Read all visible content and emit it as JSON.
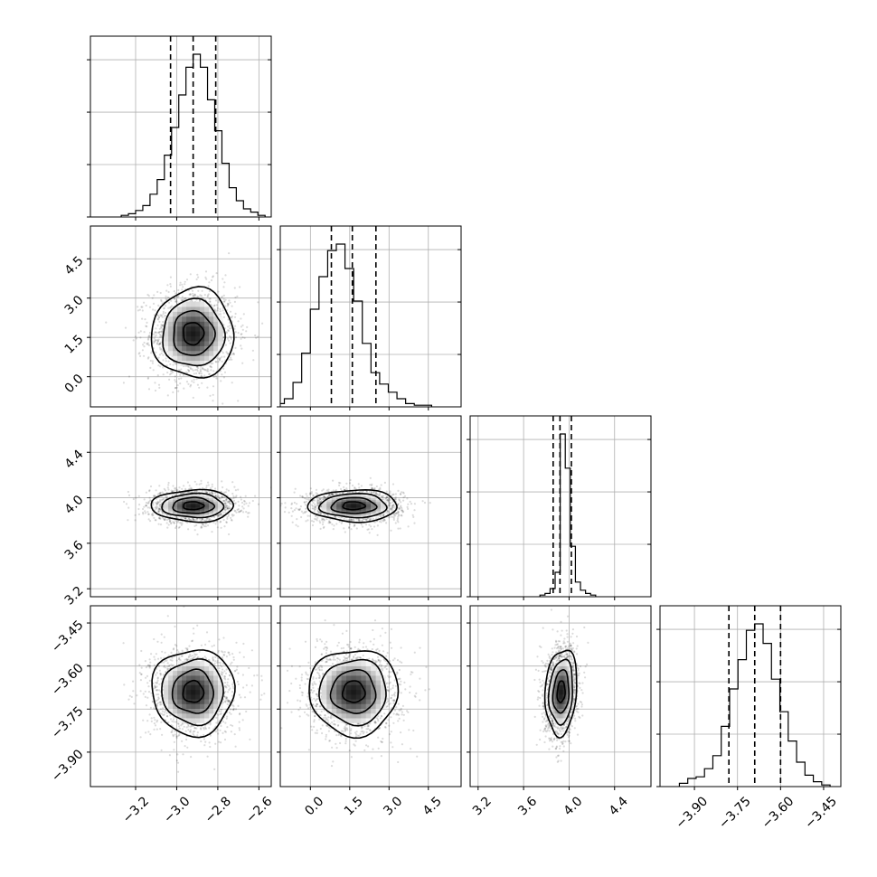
{
  "chart_data": {
    "type": "corner",
    "n_params": 4,
    "parameters": [
      {
        "mean": -2.92,
        "std": 0.1,
        "quantiles": [
          -3.03,
          -2.92,
          -2.81
        ],
        "range": [
          -3.42,
          -2.54
        ],
        "ticks": [
          -3.2,
          -3.0,
          -2.8,
          -2.6
        ],
        "tick_labels": [
          "−3.2",
          "−3.0",
          "−2.8",
          "−2.6"
        ]
      },
      {
        "mean": 1.65,
        "std": 0.85,
        "quantiles": [
          0.8,
          1.6,
          2.5
        ],
        "range": [
          -1.15,
          5.75
        ],
        "ticks": [
          0.0,
          1.5,
          3.0,
          4.5
        ],
        "tick_labels": [
          "0.0",
          "1.5",
          "3.0",
          "4.5"
        ]
      },
      {
        "mean": 3.93,
        "std": 0.07,
        "quantiles": [
          3.86,
          3.92,
          4.02
        ],
        "range": [
          3.13,
          4.72
        ],
        "ticks": [
          3.2,
          3.6,
          4.0,
          4.4
        ],
        "tick_labels": [
          "3.2",
          "3.6",
          "4.0",
          "4.4"
        ]
      },
      {
        "mean": -3.69,
        "std": 0.075,
        "quantiles": [
          -3.78,
          -3.69,
          -3.6
        ],
        "range": [
          -4.02,
          -3.39
        ],
        "ticks": [
          -3.9,
          -3.75,
          -3.6,
          -3.45
        ],
        "tick_labels": [
          "−3.90",
          "−3.75",
          "−3.60",
          "−3.45"
        ]
      }
    ],
    "histograms": [
      {
        "counts": [
          1,
          2,
          4,
          7,
          14,
          23,
          38,
          55,
          75,
          92,
          100,
          92,
          72,
          53,
          33,
          18,
          10,
          5,
          3,
          1
        ]
      },
      {
        "counts": [
          2,
          5,
          15,
          33,
          60,
          80,
          96,
          100,
          85,
          65,
          39,
          21,
          14,
          9,
          5,
          2,
          1,
          1
        ]
      },
      {
        "counts": [
          1,
          2,
          5,
          15,
          100,
          79,
          31,
          9,
          4,
          2,
          1
        ]
      },
      {
        "counts": [
          2,
          5,
          6,
          11,
          19,
          37,
          60,
          78,
          96,
          100,
          88,
          66,
          46,
          28,
          15,
          7,
          3,
          1
        ]
      }
    ],
    "pairs": [
      {
        "x": 0,
        "y": 1,
        "corr": 0.0
      },
      {
        "x": 0,
        "y": 2,
        "corr": 0.0
      },
      {
        "x": 1,
        "y": 2,
        "corr": 0.0
      },
      {
        "x": 0,
        "y": 3,
        "corr": 0.0
      },
      {
        "x": 1,
        "y": 3,
        "corr": 0.0
      },
      {
        "x": 2,
        "y": 3,
        "corr": 0.15
      }
    ],
    "contour_levels_sigma": [
      0.5,
      1.0,
      1.5,
      2.0
    ],
    "grid": true,
    "title": "",
    "xlabel": "",
    "ylabel": ""
  }
}
